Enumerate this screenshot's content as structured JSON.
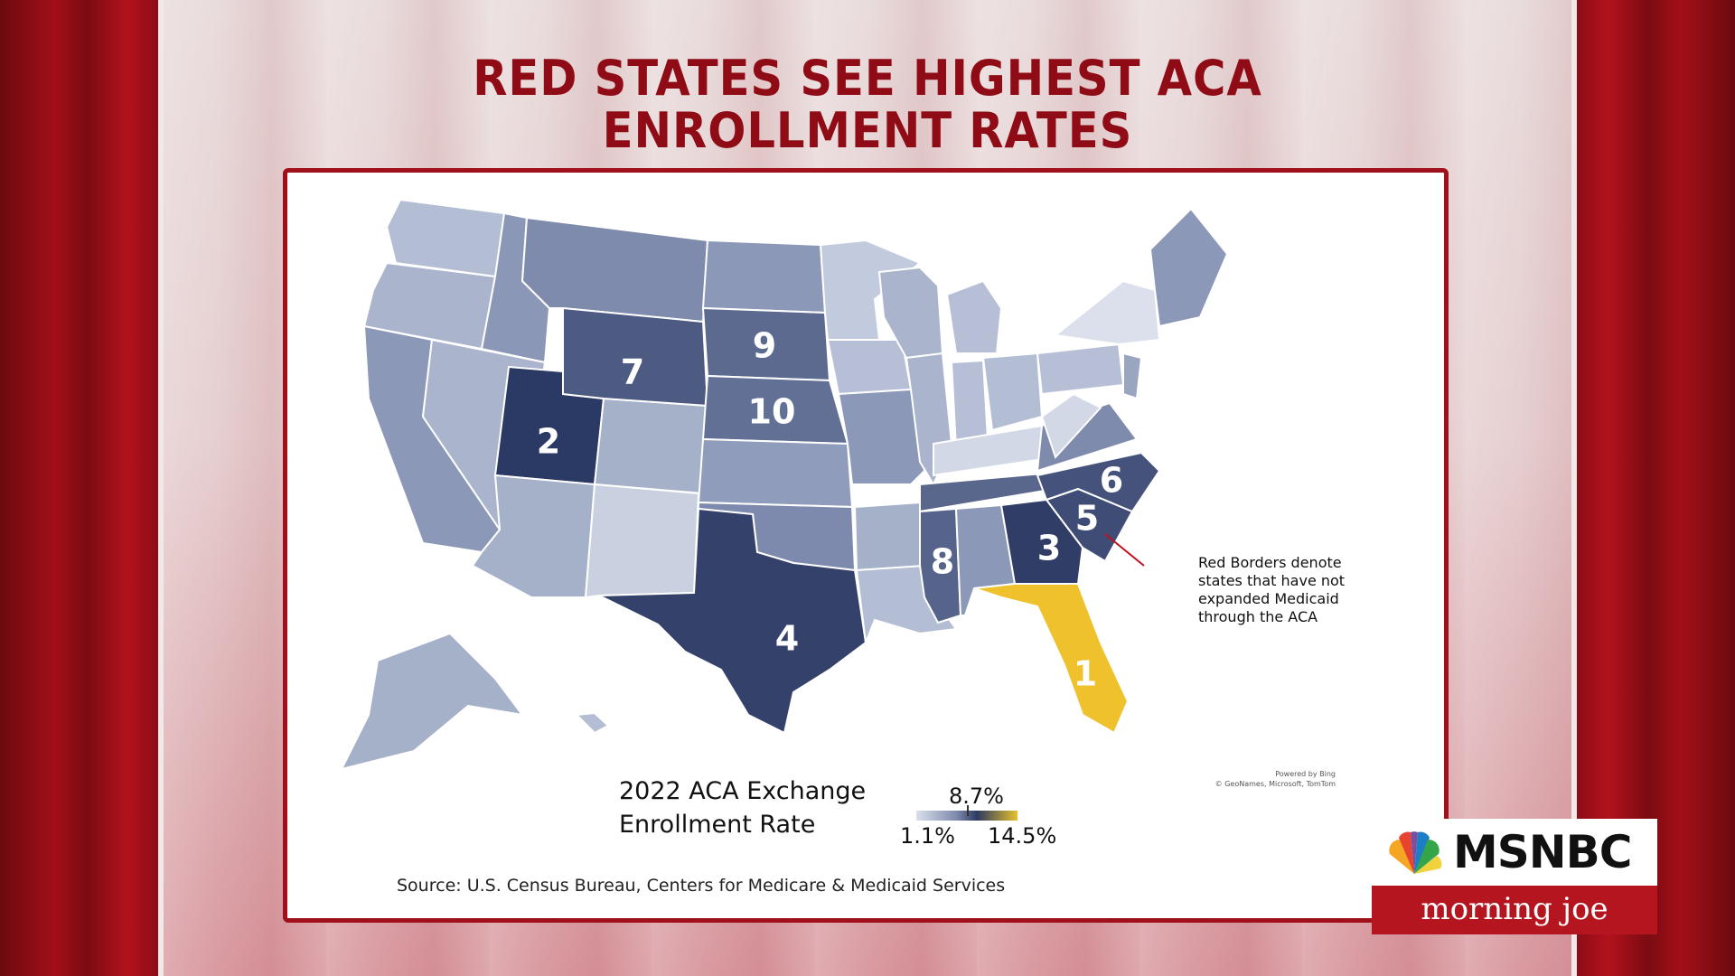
{
  "headline": {
    "line1": "RED STATES SEE HIGHEST ACA",
    "line2": "ENROLLMENT RATES"
  },
  "map": {
    "ranked_states": [
      {
        "rank": "1",
        "state": "Florida",
        "fill": "#eec12d"
      },
      {
        "rank": "2",
        "state": "Utah",
        "fill": "#2b3a64"
      },
      {
        "rank": "3",
        "state": "Georgia",
        "fill": "#2f3d67"
      },
      {
        "rank": "4",
        "state": "Texas",
        "fill": "#34416b"
      },
      {
        "rank": "5",
        "state": "South Carolina",
        "fill": "#3f4c75"
      },
      {
        "rank": "6",
        "state": "North Carolina",
        "fill": "#45527b"
      },
      {
        "rank": "7",
        "state": "Wyoming",
        "fill": "#4d5a82"
      },
      {
        "rank": "8",
        "state": "Mississippi",
        "fill": "#56638a"
      },
      {
        "rank": "9",
        "state": "South Dakota",
        "fill": "#5d6a90"
      },
      {
        "rank": "10",
        "state": "Nebraska",
        "fill": "#637096"
      }
    ],
    "annotation": "Red Borders denote states that have not expanded Medicaid through the ACA",
    "attribution_line1": "Powered by Bing",
    "attribution_line2": "© GeoNames, Microsoft, TomTom",
    "border_color": "#c01020"
  },
  "legend": {
    "title_line1": "2022 ACA Exchange",
    "title_line2": "Enrollment Rate",
    "mid_label": "8.7%",
    "min_label": "1.1%",
    "max_label": "14.5%"
  },
  "source": "Source: U.S. Census Bureau, Centers for Medicare & Medicaid Services",
  "logo": {
    "network": "MSNBC",
    "show": "morning joe"
  }
}
